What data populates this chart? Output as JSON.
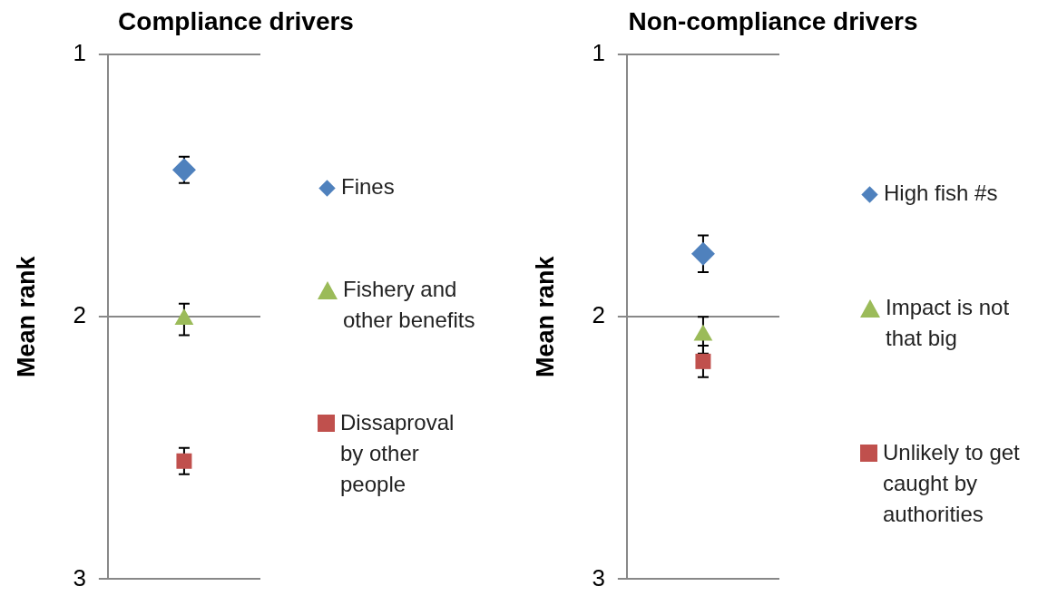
{
  "chart_data": [
    {
      "type": "scatter",
      "title": "Compliance drivers",
      "ylabel": "Mean rank",
      "categories": [
        null
      ],
      "ylim": [
        3,
        1
      ],
      "yticks": [
        1,
        2,
        3
      ],
      "grid": "y",
      "legend": "right",
      "series": [
        {
          "name": "Fines",
          "color": "#4f81bd",
          "marker": "diamond",
          "values": [
            1.44
          ],
          "errors": [
            0.05
          ]
        },
        {
          "name": "Fishery and other benefits",
          "color": "#9bbb59",
          "marker": "triangle",
          "values": [
            2.01
          ],
          "errors": [
            0.06
          ]
        },
        {
          "name": "Dissaproval by other people",
          "color": "#c0504d",
          "marker": "square",
          "values": [
            2.55
          ],
          "errors": [
            0.05
          ]
        }
      ]
    },
    {
      "type": "scatter",
      "title": "Non-compliance drivers",
      "ylabel": "Mean rank",
      "categories": [
        null
      ],
      "ylim": [
        3,
        1
      ],
      "yticks": [
        1,
        2,
        3
      ],
      "grid": "y",
      "legend": "right",
      "series": [
        {
          "name": "High fish #s",
          "color": "#4f81bd",
          "marker": "diamond",
          "values": [
            1.76
          ],
          "errors": [
            0.07
          ]
        },
        {
          "name": "Impact is not that big",
          "color": "#9bbb59",
          "marker": "triangle",
          "values": [
            2.07
          ],
          "errors": [
            0.07
          ]
        },
        {
          "name": "Unlikely to get caught by authorities",
          "color": "#c0504d",
          "marker": "square",
          "values": [
            2.17
          ],
          "errors": [
            0.06
          ]
        }
      ]
    }
  ]
}
